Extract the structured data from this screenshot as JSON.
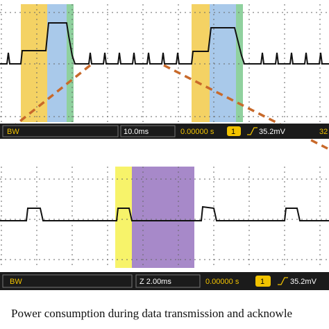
{
  "chart_data": [
    {
      "type": "line",
      "panel": "top",
      "grid": true,
      "title": "",
      "xlabel": "",
      "ylabel": "",
      "highlights": [
        {
          "color": "#f4d264"
        },
        {
          "color": "#a9c9ea"
        },
        {
          "color": "#8fd19e"
        },
        {
          "color": "#f4d264"
        },
        {
          "color": "#a9c9ea"
        },
        {
          "color": "#8fd19e"
        }
      ],
      "status_bar": {
        "bw": "BW",
        "timebase": "10.0ms",
        "delay": "0.00000 s",
        "channel": "1",
        "trigger": "35.2mV",
        "trailing": "32"
      }
    },
    {
      "type": "line",
      "panel": "bottom",
      "grid": true,
      "title": "",
      "xlabel": "",
      "ylabel": "",
      "highlights": [
        {
          "color": "#f7f36a"
        },
        {
          "color": "#a789c9"
        }
      ],
      "status_bar": {
        "bw": "BW",
        "timebase": "Z 2.00ms",
        "delay": "0.00000 s",
        "channel": "1",
        "trigger": "35.2mV"
      }
    }
  ],
  "colors": {
    "zoom_line": "#c8692a",
    "trace": "#111111",
    "status_bg": "#1b1b1b",
    "status_text": "#f2c300"
  },
  "caption": "Power consumption during data transmission and acknowle"
}
